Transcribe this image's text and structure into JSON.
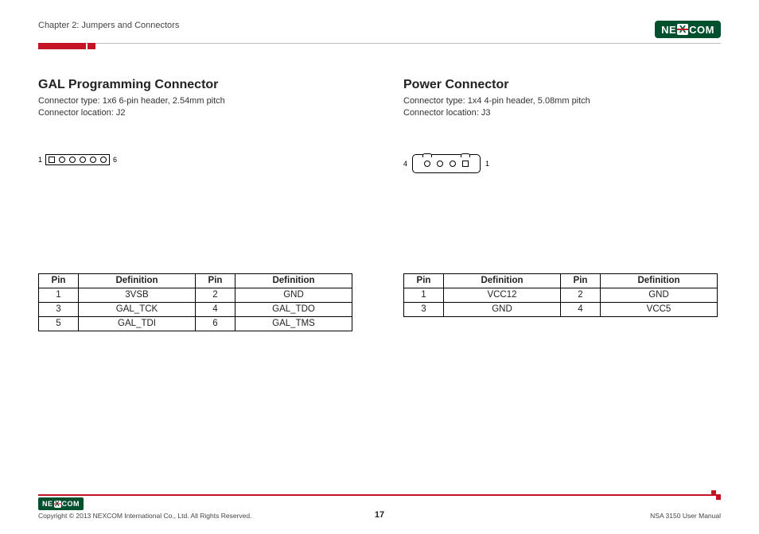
{
  "header": {
    "chapter": "Chapter 2: Jumpers and Connectors",
    "logo_bg": "#004f2d",
    "logo_text_pre": "NE",
    "logo_text_mid": "X",
    "logo_text_post": "COM",
    "logo_accent": "#c41425"
  },
  "red_tab": {
    "color": "#c41425"
  },
  "left_section": {
    "title": "GAL Programming Connector",
    "line1": "Connector type: 1x6 6-pin header, 2.54mm pitch",
    "line2": "Connector location: J2",
    "diagram": {
      "left_label": "1",
      "right_label": "6",
      "pin_count": 6,
      "pin1_shape": "square",
      "pin_shape": "circle"
    },
    "table": {
      "headers": [
        "Pin",
        "Definition",
        "Pin",
        "Definition"
      ],
      "rows": [
        [
          "1",
          "3VSB",
          "2",
          "GND"
        ],
        [
          "3",
          "GAL_TCK",
          "4",
          "GAL_TDO"
        ],
        [
          "5",
          "GAL_TDI",
          "6",
          "GAL_TMS"
        ]
      ]
    }
  },
  "right_section": {
    "title": "Power Connector",
    "line1": "Connector type: 1x4 4-pin header, 5.08mm pitch",
    "line2": "Connector location: J3",
    "diagram": {
      "left_label": "4",
      "right_label": "1",
      "pin_count": 4,
      "pin1_shape": "square",
      "pin1_position": "right",
      "notches": 2
    },
    "table": {
      "headers": [
        "Pin",
        "Definition",
        "Pin",
        "Definition"
      ],
      "rows": [
        [
          "1",
          "VCC12",
          "2",
          "GND"
        ],
        [
          "3",
          "GND",
          "4",
          "VCC5"
        ]
      ]
    }
  },
  "footer": {
    "rule_color": "#c41425",
    "copyright": "Copyright © 2013 NEXCOM International Co., Ltd. All Rights Reserved.",
    "page_number": "17",
    "manual": "NSA 3150 User Manual"
  }
}
